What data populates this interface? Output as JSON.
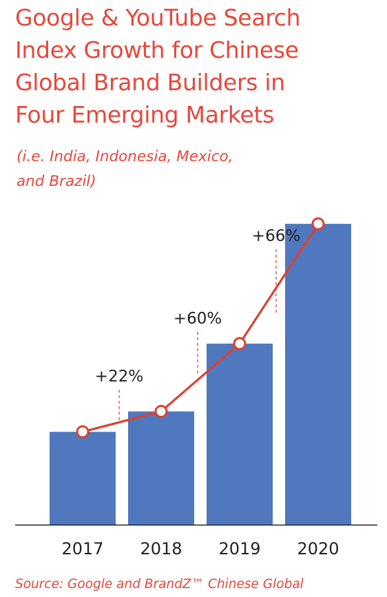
{
  "title_lines": [
    "Google & YouTube Search",
    "Index Growth for Chinese",
    "Global Brand Builders in",
    "Four Emerging Markets"
  ],
  "subtitle_lines": [
    "(i.e. India, Indonesia, Mexico,",
    "and Brazil)"
  ],
  "source": "Source: Google and BrandZ™ Chinese Global",
  "colors": {
    "bar": "#5078bf",
    "line": "#dd4131",
    "accent_text": "#e8473b",
    "axis": "#222222"
  },
  "chart_data": {
    "type": "bar",
    "categories": [
      "2017",
      "2018",
      "2019",
      "2020"
    ],
    "values": [
      100,
      122,
      195,
      324
    ],
    "ylim": [
      0,
      330
    ],
    "growth_labels": [
      {
        "after": "2018",
        "label": "+22%"
      },
      {
        "after": "2019",
        "label": "+60%"
      },
      {
        "after": "2020",
        "label": "+66%"
      }
    ],
    "overlay": "line-with-hollow-markers",
    "grid": false,
    "y_axis_shown": false
  }
}
